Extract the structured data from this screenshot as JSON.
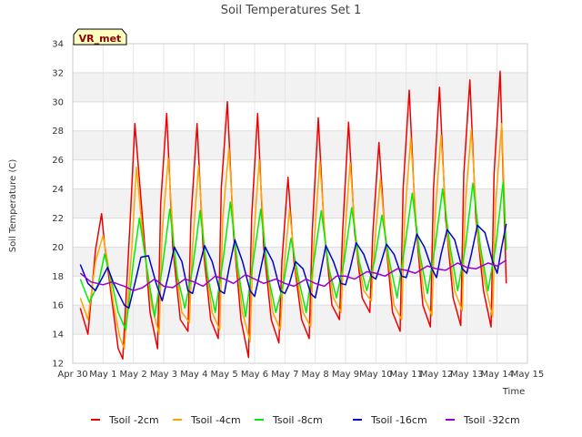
{
  "chart_data": {
    "type": "line",
    "title": "Soil Temperatures Set 1",
    "xlabel": "Time",
    "ylabel": "Soil Temperature (C)",
    "badge": "VR_met",
    "xlim": [
      0,
      15
    ],
    "ylim": [
      12,
      34
    ],
    "yticks": [
      12,
      14,
      16,
      18,
      20,
      22,
      24,
      26,
      28,
      30,
      32,
      34
    ],
    "xtick_labels": [
      "Apr 30",
      "May 1",
      "May 2",
      "May 3",
      "May 4",
      "May 5",
      "May 6",
      "May 7",
      "May 8",
      "May 9",
      "May 10",
      "May 11",
      "May 12",
      "May 13",
      "May 14",
      "May 15"
    ],
    "grid": true,
    "legend_position": "bottom",
    "x_units": "days since Apr 30 00:00",
    "series": [
      {
        "name": "Tsoil -2cm",
        "color": "#ee0000",
        "x": [
          0.25,
          0.5,
          0.75,
          0.95,
          1.05,
          1.25,
          1.5,
          1.65,
          1.9,
          2.05,
          2.3,
          2.55,
          2.8,
          2.9,
          3.1,
          3.3,
          3.55,
          3.8,
          3.9,
          4.1,
          4.3,
          4.55,
          4.8,
          4.9,
          5.1,
          5.3,
          5.55,
          5.8,
          5.9,
          6.1,
          6.3,
          6.55,
          6.8,
          6.9,
          7.1,
          7.3,
          7.55,
          7.8,
          7.9,
          8.1,
          8.3,
          8.55,
          8.8,
          8.9,
          9.1,
          9.3,
          9.55,
          9.8,
          9.9,
          10.1,
          10.3,
          10.55,
          10.8,
          10.9,
          11.1,
          11.3,
          11.55,
          11.8,
          11.9,
          12.1,
          12.3,
          12.55,
          12.8,
          12.9,
          13.1,
          13.3,
          13.55,
          13.8,
          13.9,
          14.1,
          14.3
        ],
        "y": [
          15.8,
          14.0,
          19.8,
          22.3,
          20.2,
          17.0,
          13.0,
          12.3,
          22.0,
          28.5,
          22.0,
          15.5,
          13.0,
          23.0,
          29.2,
          20.0,
          15.0,
          14.2,
          22.0,
          28.5,
          20.0,
          15.0,
          13.7,
          24.0,
          30.0,
          21.0,
          15.0,
          12.4,
          22.0,
          29.2,
          20.0,
          15.0,
          13.4,
          19.0,
          24.8,
          19.0,
          15.0,
          13.7,
          21.0,
          28.9,
          21.0,
          16.0,
          15.0,
          21.0,
          28.6,
          21.0,
          16.5,
          15.5,
          21.0,
          27.2,
          21.0,
          15.5,
          14.2,
          24.0,
          30.8,
          22.0,
          16.0,
          14.5,
          24.0,
          31.0,
          22.0,
          16.5,
          14.6,
          25.0,
          31.5,
          22.0,
          17.0,
          14.5,
          25.0,
          32.1,
          17.5
        ]
      },
      {
        "name": "Tsoil -4cm",
        "color": "#ffa500",
        "x": [
          0.25,
          0.5,
          0.75,
          1.0,
          1.15,
          1.35,
          1.55,
          1.7,
          1.95,
          2.1,
          2.35,
          2.6,
          2.85,
          2.95,
          3.15,
          3.35,
          3.6,
          3.85,
          3.95,
          4.15,
          4.35,
          4.6,
          4.85,
          4.95,
          5.15,
          5.35,
          5.6,
          5.85,
          5.95,
          6.15,
          6.35,
          6.6,
          6.85,
          6.95,
          7.15,
          7.35,
          7.6,
          7.85,
          7.95,
          8.15,
          8.35,
          8.6,
          8.85,
          8.95,
          9.15,
          9.35,
          9.6,
          9.85,
          9.95,
          10.15,
          10.35,
          10.6,
          10.85,
          10.95,
          11.15,
          11.35,
          11.6,
          11.85,
          11.95,
          12.15,
          12.35,
          12.6,
          12.85,
          12.95,
          13.15,
          13.35,
          13.6,
          13.85,
          13.95,
          14.15,
          14.3
        ],
        "y": [
          16.5,
          15.0,
          19.0,
          20.8,
          19.0,
          16.0,
          13.8,
          13.0,
          20.0,
          25.5,
          20.0,
          16.0,
          14.0,
          21.0,
          26.1,
          19.5,
          15.5,
          14.8,
          20.0,
          25.6,
          19.5,
          15.5,
          14.3,
          22.0,
          26.8,
          20.0,
          15.5,
          13.5,
          20.0,
          26.0,
          19.5,
          15.5,
          14.3,
          18.0,
          22.6,
          18.5,
          15.5,
          14.5,
          20.0,
          25.9,
          20.0,
          16.5,
          15.5,
          20.0,
          25.8,
          20.0,
          17.0,
          16.3,
          20.0,
          24.7,
          20.0,
          16.0,
          15.0,
          22.0,
          27.5,
          21.0,
          16.5,
          15.3,
          22.0,
          27.7,
          21.0,
          17.0,
          15.6,
          23.0,
          28.1,
          21.0,
          17.5,
          15.2,
          23.0,
          28.5,
          19.8
        ]
      },
      {
        "name": "Tsoil -8cm",
        "color": "#00ee00",
        "x": [
          0.25,
          0.55,
          0.85,
          1.05,
          1.3,
          1.5,
          1.75,
          2.0,
          2.2,
          2.45,
          2.7,
          2.95,
          3.2,
          3.45,
          3.7,
          3.95,
          4.2,
          4.45,
          4.7,
          4.95,
          5.2,
          5.45,
          5.7,
          5.95,
          6.2,
          6.45,
          6.7,
          6.95,
          7.2,
          7.45,
          7.7,
          7.95,
          8.2,
          8.45,
          8.7,
          8.95,
          9.2,
          9.45,
          9.7,
          9.95,
          10.2,
          10.45,
          10.7,
          10.95,
          11.2,
          11.45,
          11.7,
          11.95,
          12.2,
          12.45,
          12.7,
          12.95,
          13.2,
          13.45,
          13.7,
          13.95,
          14.2,
          14.3
        ],
        "y": [
          17.8,
          16.2,
          17.5,
          19.5,
          17.5,
          15.5,
          14.3,
          19.0,
          22.0,
          18.5,
          15.2,
          18.5,
          22.6,
          18.0,
          15.8,
          18.5,
          22.5,
          18.0,
          15.5,
          19.0,
          23.1,
          18.5,
          15.2,
          19.0,
          22.6,
          18.0,
          15.5,
          17.5,
          20.6,
          17.8,
          15.5,
          19.0,
          22.5,
          18.5,
          16.5,
          19.0,
          22.7,
          19.0,
          17.0,
          19.0,
          22.2,
          19.0,
          16.5,
          20.0,
          23.7,
          19.5,
          16.8,
          20.0,
          24.0,
          20.0,
          17.0,
          20.0,
          24.4,
          20.0,
          17.0,
          20.0,
          24.5,
          19.8
        ]
      },
      {
        "name": "Tsoil -16cm",
        "color": "#0000cc",
        "x": [
          0.25,
          0.5,
          0.75,
          1.0,
          1.15,
          1.35,
          1.7,
          1.85,
          2.05,
          2.25,
          2.5,
          2.75,
          2.95,
          3.15,
          3.35,
          3.6,
          3.8,
          3.95,
          4.15,
          4.35,
          4.6,
          4.85,
          5.0,
          5.15,
          5.35,
          5.6,
          5.85,
          6.0,
          6.15,
          6.35,
          6.6,
          6.85,
          7.0,
          7.15,
          7.35,
          7.6,
          7.85,
          8.0,
          8.15,
          8.35,
          8.6,
          8.85,
          9.0,
          9.15,
          9.35,
          9.6,
          9.85,
          10.0,
          10.15,
          10.35,
          10.6,
          10.85,
          11.0,
          11.15,
          11.35,
          11.6,
          11.85,
          12.0,
          12.15,
          12.35,
          12.6,
          12.85,
          13.0,
          13.15,
          13.35,
          13.6,
          13.85,
          14.0,
          14.15,
          14.3
        ],
        "y": [
          18.8,
          17.5,
          17.0,
          18.0,
          18.6,
          17.5,
          16.0,
          15.8,
          17.5,
          19.3,
          19.4,
          17.5,
          16.3,
          18.0,
          20.0,
          19.0,
          17.0,
          16.8,
          18.5,
          20.1,
          19.0,
          17.0,
          16.8,
          18.5,
          20.5,
          19.0,
          17.0,
          16.6,
          18.0,
          20.0,
          19.0,
          17.0,
          16.8,
          17.5,
          19.0,
          18.5,
          16.8,
          16.5,
          18.0,
          20.1,
          19.0,
          17.5,
          17.4,
          18.5,
          20.3,
          19.5,
          18.0,
          17.8,
          18.8,
          20.2,
          19.5,
          18.0,
          17.9,
          19.0,
          20.9,
          20.0,
          18.5,
          17.9,
          19.5,
          21.2,
          20.5,
          18.5,
          18.2,
          19.5,
          21.5,
          21.0,
          19.0,
          18.2,
          20.0,
          21.6
        ]
      },
      {
        "name": "Tsoil -32cm",
        "color": "#9900cc",
        "x": [
          0.25,
          0.6,
          1.0,
          1.3,
          1.7,
          2.0,
          2.3,
          2.7,
          3.0,
          3.3,
          3.7,
          4.0,
          4.3,
          4.7,
          5.0,
          5.3,
          5.7,
          6.0,
          6.3,
          6.7,
          7.0,
          7.3,
          7.7,
          8.0,
          8.3,
          8.7,
          9.0,
          9.3,
          9.7,
          10.0,
          10.3,
          10.7,
          11.0,
          11.3,
          11.7,
          12.0,
          12.3,
          12.7,
          13.0,
          13.3,
          13.7,
          14.0,
          14.3
        ],
        "y": [
          18.2,
          17.6,
          17.4,
          17.6,
          17.3,
          17.0,
          17.2,
          17.8,
          17.3,
          17.2,
          17.8,
          17.6,
          17.3,
          18.0,
          17.8,
          17.5,
          18.1,
          17.8,
          17.5,
          17.8,
          17.5,
          17.3,
          17.8,
          17.5,
          17.3,
          18.0,
          18.0,
          17.8,
          18.3,
          18.2,
          18.0,
          18.5,
          18.4,
          18.2,
          18.7,
          18.5,
          18.4,
          18.9,
          18.6,
          18.5,
          18.9,
          18.7,
          19.1
        ]
      }
    ]
  }
}
